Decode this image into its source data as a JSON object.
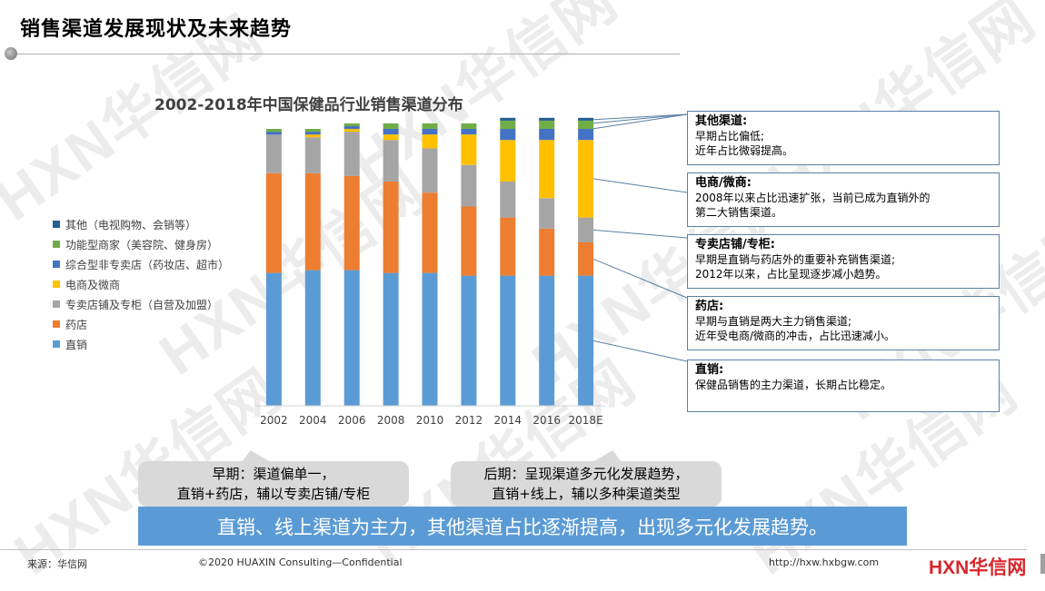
{
  "page": {
    "title": "销售渠道发展现状及未来趋势"
  },
  "watermark_text": "HXN华信网",
  "chart_data": {
    "type": "bar",
    "stacked": true,
    "title": "2002-2018年中国保健品行业销售渠道分布",
    "categories": [
      "2002",
      "2004",
      "2006",
      "2008",
      "2010",
      "2012",
      "2014",
      "2016",
      "2018E"
    ],
    "series": [
      {
        "name": "直销",
        "color": "#5b9bd5",
        "values": [
          48,
          49,
          49,
          48,
          48,
          47,
          47,
          47,
          47
        ]
      },
      {
        "name": "药店",
        "color": "#ed7d31",
        "values": [
          36,
          35,
          34,
          33,
          29,
          25,
          21,
          17,
          12
        ]
      },
      {
        "name": "专卖店铺及专柜（自营及加盟）",
        "color": "#a5a5a5",
        "values": [
          14,
          13,
          16,
          15,
          16,
          15,
          13,
          11,
          9
        ]
      },
      {
        "name": "电商及微商",
        "color": "#ffc000",
        "values": [
          0,
          1,
          1,
          2,
          5,
          11,
          15,
          21,
          28
        ]
      },
      {
        "name": "综合型非专卖店（药妆店、超市）",
        "color": "#4472c4",
        "values": [
          1,
          1,
          1,
          2,
          2,
          2,
          4,
          4,
          4
        ]
      },
      {
        "name": "功能型商家（美容院、健身房）",
        "color": "#70ad47",
        "values": [
          1,
          1,
          1,
          2,
          2,
          2,
          3,
          3,
          3
        ]
      },
      {
        "name": "其他（电视购物、会销等）",
        "color": "#255e91",
        "values": [
          0,
          0,
          0,
          0,
          0,
          0,
          1,
          1,
          1
        ]
      }
    ],
    "ylim": [
      0,
      100
    ],
    "grid": false,
    "legend_position": "left"
  },
  "legend_order": [
    "其他（电视购物、会销等）",
    "功能型商家（美容院、健身房）",
    "综合型非专卖店（药妆店、超市）",
    "电商及微商",
    "专卖店铺及专柜（自营及加盟）",
    "药店",
    "直销"
  ],
  "legend_colors": [
    "#255e91",
    "#70ad47",
    "#4472c4",
    "#ffc000",
    "#a5a5a5",
    "#ed7d31",
    "#5b9bd5"
  ],
  "notes": [
    {
      "title": "其他渠道:",
      "lines": [
        "早期占比偏低;",
        "近年占比微弱提高。"
      ]
    },
    {
      "title": "电商/微商:",
      "lines": [
        "2008年以来占比迅速扩张，当前已成为直销外的",
        "第二大销售渠道。"
      ]
    },
    {
      "title": "专卖店铺/专柜:",
      "lines": [
        "早期是直销与药店外的重要补充销售渠道;",
        "2012年以来，占比呈现逐步减小趋势。"
      ]
    },
    {
      "title": "药店:",
      "lines": [
        "早期与直销是两大主力销售渠道;",
        "近年受电商/微商的冲击，占比迅速减小。"
      ]
    },
    {
      "title": "直销:",
      "lines": [
        "保健品销售的主力渠道，长期占比稳定。"
      ]
    }
  ],
  "bubbles": {
    "early": [
      "早期：渠道偏单一，",
      "直销+药店，辅以专卖店铺/专柜"
    ],
    "late": [
      "后期：呈现渠道多元化发展趋势，",
      "直销+线上，辅以多种渠道类型"
    ]
  },
  "conclusion": "直销、线上渠道为主力，其他渠道占比逐渐提高，出现多元化发展趋势。",
  "footer": {
    "source": "来源：华信网",
    "copyright": "©2020 HUAXIN Consulting—Confidential",
    "url": "http://hxw.hxbgw.com",
    "logo_prefix": "HXN",
    "logo_suffix": "华信网"
  }
}
